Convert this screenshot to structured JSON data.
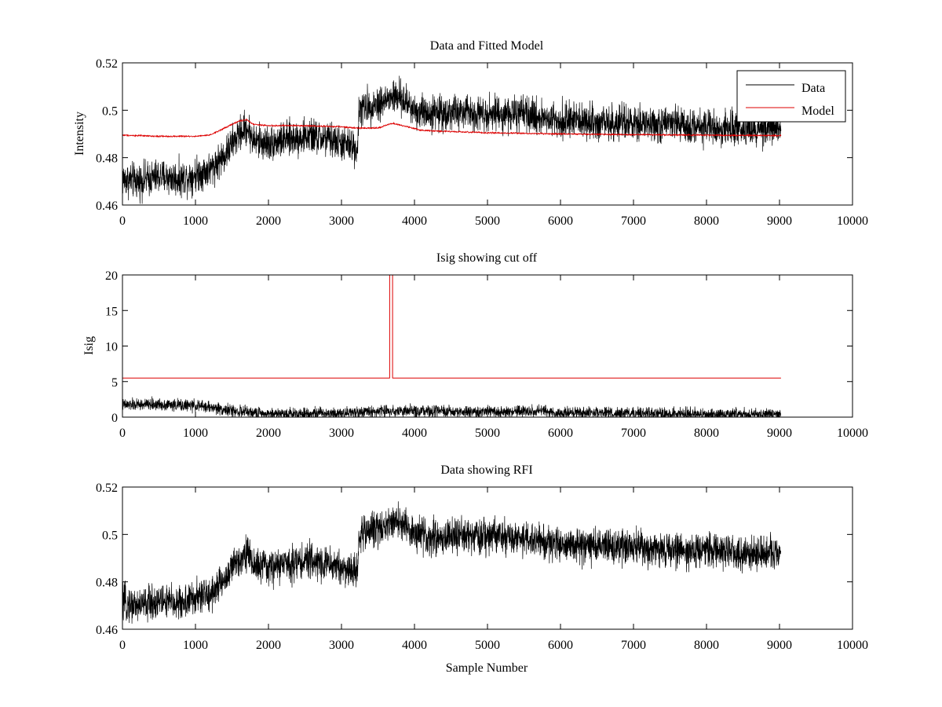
{
  "chart_data": [
    {
      "type": "line",
      "title": "Data and Fitted Model",
      "xlabel": "",
      "ylabel": "Intensity",
      "xlim": [
        0,
        10000
      ],
      "ylim": [
        0.46,
        0.52
      ],
      "xticks": [
        0,
        1000,
        2000,
        3000,
        4000,
        5000,
        6000,
        7000,
        8000,
        9000,
        10000
      ],
      "yticks": [
        0.46,
        0.48,
        0.5,
        0.52
      ],
      "ytick_labels": [
        "0.46",
        "0.48",
        "0.5",
        "0.52"
      ],
      "grid": false,
      "legend": "top-right",
      "series": [
        {
          "name": "Data",
          "color": "#000000",
          "noise_amplitude": 0.008,
          "x": [
            0,
            200,
            500,
            800,
            1000,
            1200,
            1400,
            1550,
            1700,
            1800,
            2000,
            2300,
            2600,
            2900,
            3100,
            3220,
            3240,
            3400,
            3600,
            3750,
            3900,
            4000,
            4200,
            4500,
            5000,
            5500,
            6000,
            6500,
            7000,
            7500,
            8000,
            8500,
            9000,
            9020
          ],
          "values": [
            0.471,
            0.47,
            0.472,
            0.471,
            0.473,
            0.475,
            0.481,
            0.488,
            0.493,
            0.487,
            0.486,
            0.488,
            0.489,
            0.487,
            0.485,
            0.484,
            0.5,
            0.502,
            0.504,
            0.506,
            0.503,
            0.5,
            0.499,
            0.499,
            0.499,
            0.498,
            0.496,
            0.495,
            0.494,
            0.494,
            0.493,
            0.492,
            0.492,
            0.491
          ]
        },
        {
          "name": "Model",
          "color": "#dd0000",
          "noise_amplitude": 0.0004,
          "x": [
            0,
            500,
            1000,
            1200,
            1400,
            1600,
            1700,
            1800,
            2000,
            2500,
            3000,
            3200,
            3500,
            3700,
            3900,
            4100,
            4500,
            5000,
            6000,
            7000,
            8000,
            9000,
            9020
          ],
          "values": [
            0.4895,
            0.489,
            0.489,
            0.4895,
            0.4925,
            0.4955,
            0.496,
            0.494,
            0.4935,
            0.4935,
            0.493,
            0.4925,
            0.4925,
            0.4945,
            0.493,
            0.4915,
            0.491,
            0.4905,
            0.49,
            0.4897,
            0.4895,
            0.4893,
            0.4893
          ]
        }
      ]
    },
    {
      "type": "line",
      "title": "Isig showing cut off",
      "xlabel": "",
      "ylabel": "Isig",
      "xlim": [
        0,
        10000
      ],
      "ylim": [
        0,
        20
      ],
      "xticks": [
        0,
        1000,
        2000,
        3000,
        4000,
        5000,
        6000,
        7000,
        8000,
        9000,
        10000
      ],
      "yticks": [
        0,
        5,
        10,
        15,
        20
      ],
      "ytick_labels": [
        "0",
        "5",
        "10",
        "15",
        "20"
      ],
      "grid": false,
      "series": [
        {
          "color": "#000000",
          "noise_amplitude": 0.9,
          "x": [
            0,
            500,
            1000,
            1200,
            1500,
            1800,
            2000,
            3000,
            3700,
            4000,
            5000,
            5700,
            6000,
            7000,
            8000,
            9000,
            9020
          ],
          "values": [
            1.7,
            1.8,
            1.6,
            1.4,
            0.9,
            0.6,
            0.5,
            0.6,
            0.9,
            0.8,
            0.7,
            0.8,
            0.6,
            0.5,
            0.4,
            0.4,
            0.4
          ]
        },
        {
          "color": "#dd0000",
          "noise_amplitude": 0,
          "x": [
            0,
            3660,
            3660,
            3700,
            3700,
            9020
          ],
          "values": [
            5.5,
            5.5,
            20,
            20,
            5.5,
            5.5
          ]
        }
      ]
    },
    {
      "type": "line",
      "title": "Data showing RFI",
      "xlabel": "Sample Number",
      "ylabel": "",
      "xlim": [
        0,
        10000
      ],
      "ylim": [
        0.46,
        0.52
      ],
      "xticks": [
        0,
        1000,
        2000,
        3000,
        4000,
        5000,
        6000,
        7000,
        8000,
        9000,
        10000
      ],
      "yticks": [
        0.46,
        0.48,
        0.5,
        0.52
      ],
      "ytick_labels": [
        "0.46",
        "0.48",
        "0.5",
        "0.52"
      ],
      "grid": false,
      "series": [
        {
          "color": "#000000",
          "noise_amplitude": 0.008,
          "x": [
            0,
            200,
            500,
            800,
            1000,
            1200,
            1400,
            1550,
            1700,
            1800,
            2000,
            2300,
            2600,
            2900,
            3100,
            3220,
            3240,
            3400,
            3600,
            3750,
            3900,
            4000,
            4200,
            4500,
            5000,
            5500,
            6000,
            6500,
            7000,
            7500,
            8000,
            8500,
            9000,
            9020
          ],
          "values": [
            0.471,
            0.47,
            0.472,
            0.471,
            0.473,
            0.475,
            0.481,
            0.488,
            0.493,
            0.487,
            0.486,
            0.488,
            0.489,
            0.487,
            0.485,
            0.484,
            0.5,
            0.502,
            0.504,
            0.506,
            0.503,
            0.5,
            0.499,
            0.499,
            0.499,
            0.498,
            0.496,
            0.495,
            0.494,
            0.494,
            0.493,
            0.492,
            0.492,
            0.491
          ]
        }
      ]
    }
  ]
}
